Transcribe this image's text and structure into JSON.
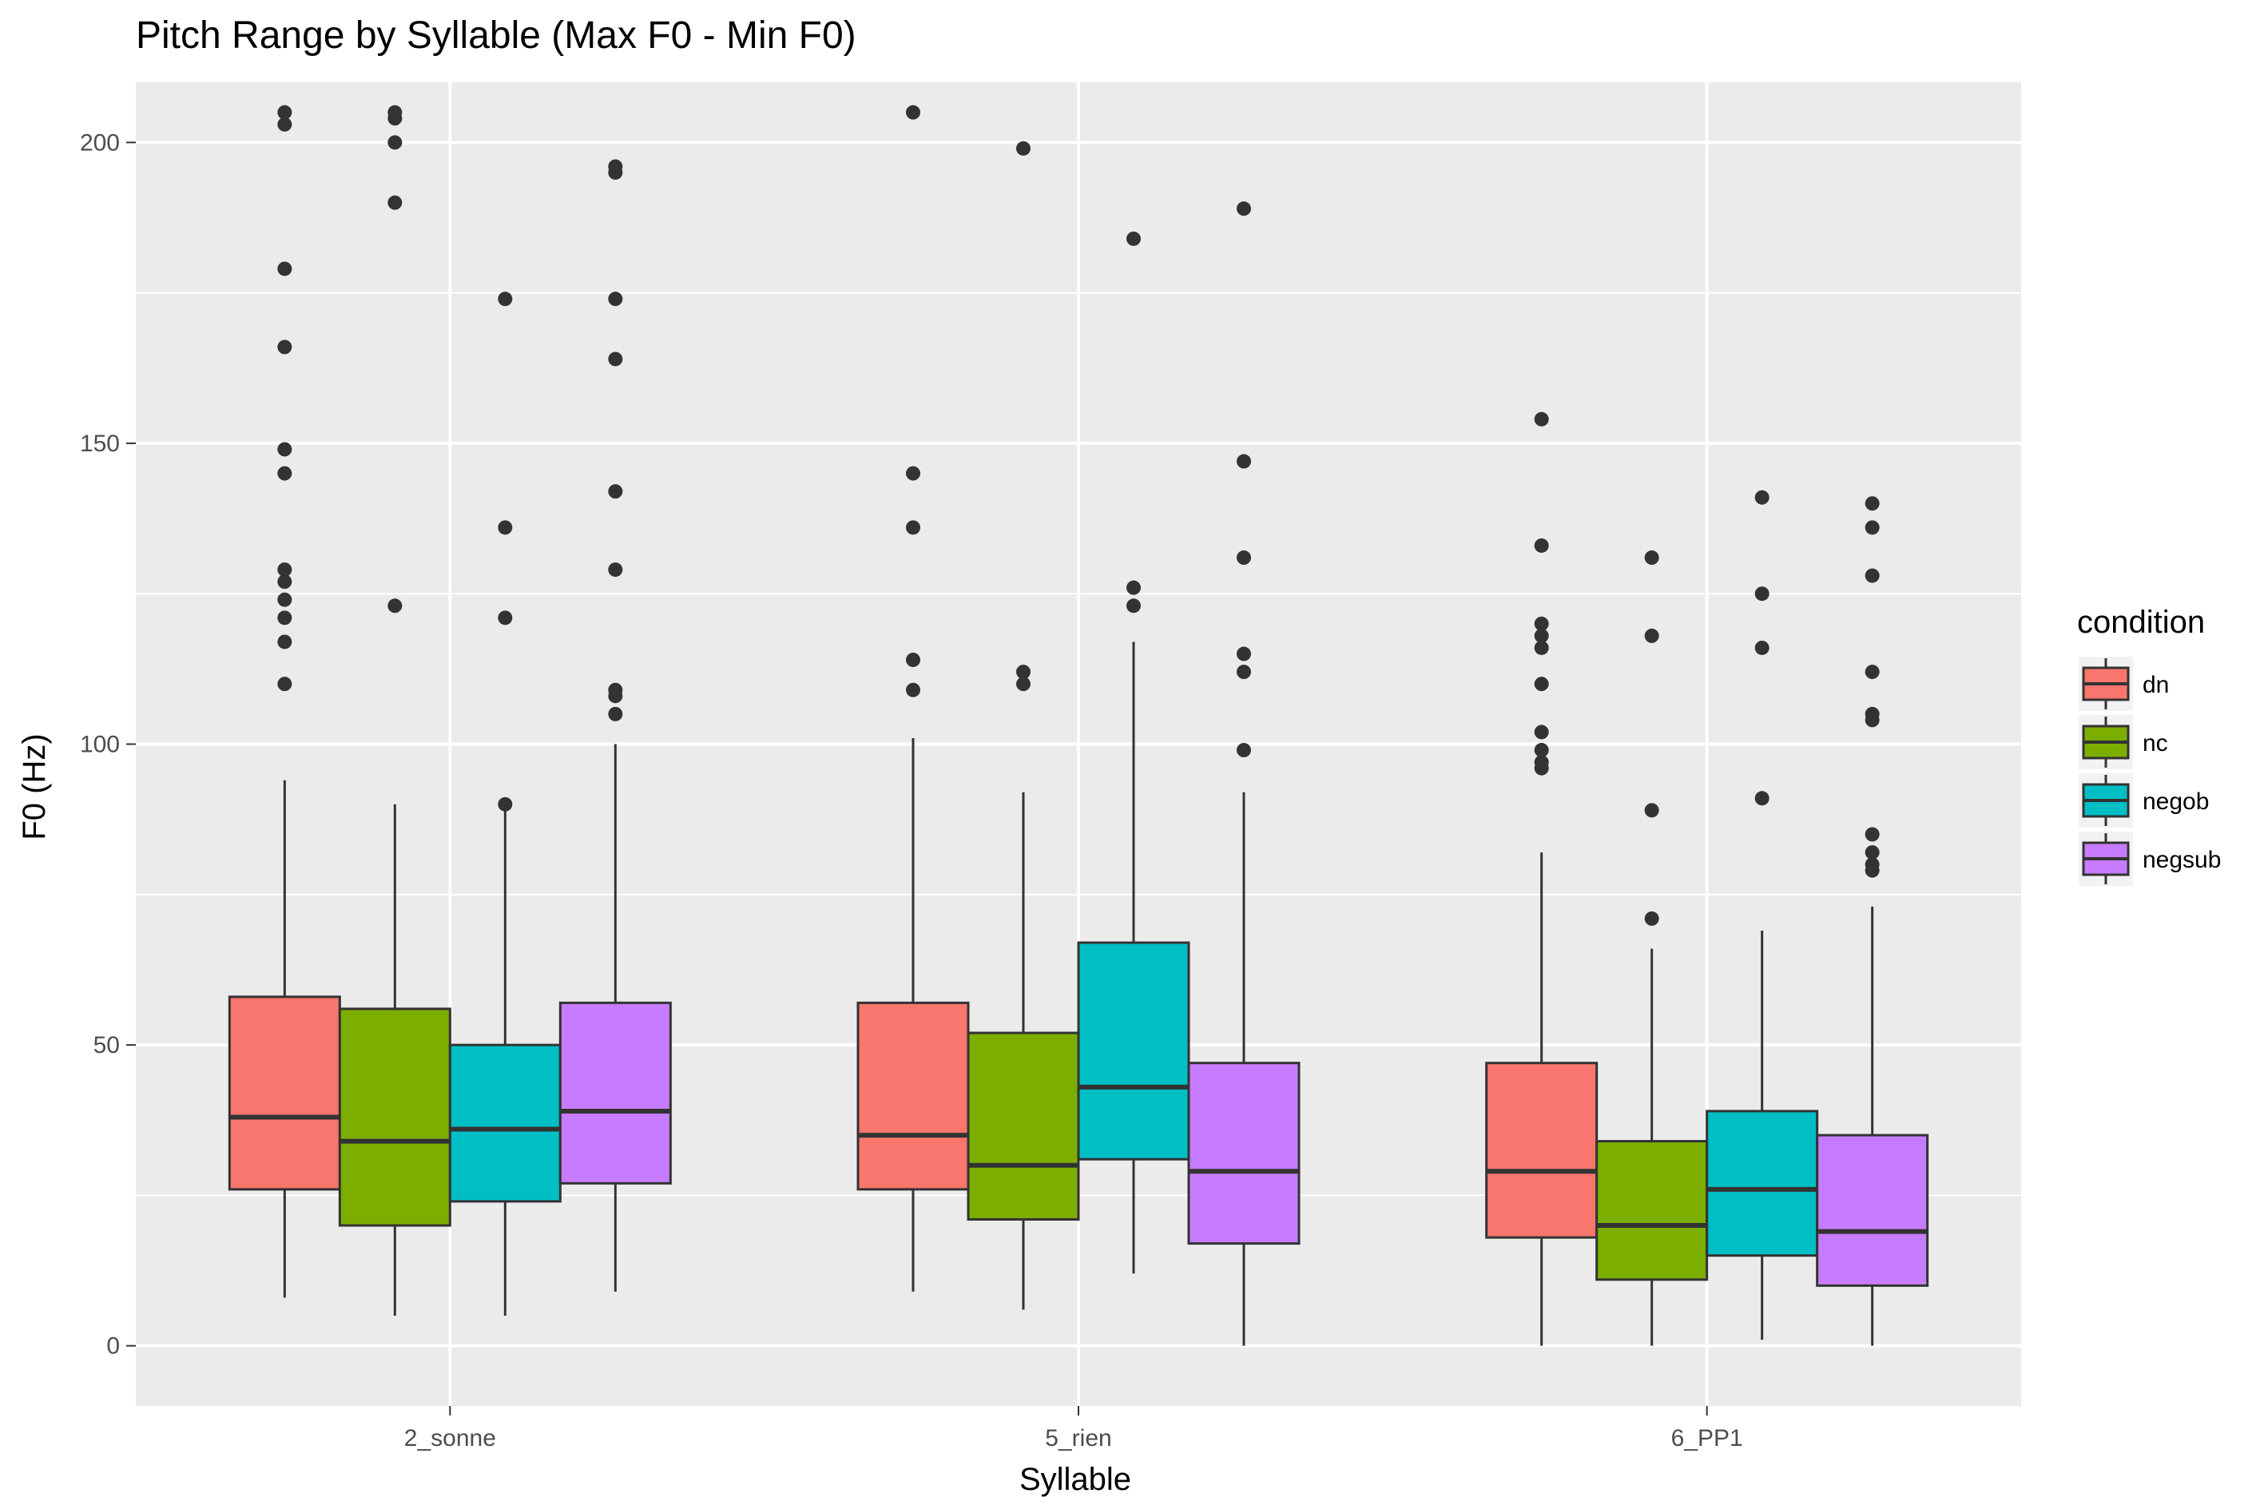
{
  "chart_data": {
    "type": "boxplot",
    "title": "Pitch Range by Syllable (Max F0 - Min F0)",
    "xlabel": "Syllable",
    "ylabel": "F0 (Hz)",
    "categories": [
      "2_sonne",
      "5_rien",
      "6_PP1"
    ],
    "ylim": [
      -10,
      210
    ],
    "yticks": [
      0,
      50,
      100,
      150,
      200
    ],
    "grid": true,
    "legend": {
      "title": "condition",
      "position": "right"
    },
    "series": [
      {
        "name": "dn",
        "color": "#F8766D",
        "boxes": [
          {
            "lower_whisker": 8,
            "q1": 26,
            "median": 38,
            "q3": 58,
            "upper_whisker": 94,
            "outliers": [
              110,
              117,
              121,
              124,
              127,
              129,
              145,
              149,
              166,
              179,
              203,
              205
            ]
          },
          {
            "lower_whisker": 9,
            "q1": 26,
            "median": 35,
            "q3": 57,
            "upper_whisker": 101,
            "outliers": [
              109,
              114,
              136,
              145,
              205
            ]
          },
          {
            "lower_whisker": 0,
            "q1": 18,
            "median": 29,
            "q3": 47,
            "upper_whisker": 82,
            "outliers": [
              96,
              97,
              99,
              102,
              110,
              116,
              118,
              120,
              133,
              154
            ]
          }
        ]
      },
      {
        "name": "nc",
        "color": "#7CAE00",
        "boxes": [
          {
            "lower_whisker": 5,
            "q1": 20,
            "median": 34,
            "q3": 56,
            "upper_whisker": 90,
            "outliers": [
              123,
              190,
              200,
              204,
              205
            ]
          },
          {
            "lower_whisker": 6,
            "q1": 21,
            "median": 30,
            "q3": 52,
            "upper_whisker": 92,
            "outliers": [
              110,
              112,
              199
            ]
          },
          {
            "lower_whisker": 0,
            "q1": 11,
            "median": 20,
            "q3": 34,
            "upper_whisker": 66,
            "outliers": [
              71,
              89,
              118,
              131
            ]
          }
        ]
      },
      {
        "name": "negob",
        "color": "#00BFC4",
        "boxes": [
          {
            "lower_whisker": 5,
            "q1": 24,
            "median": 36,
            "q3": 50,
            "upper_whisker": 89,
            "outliers": [
              90,
              121,
              136,
              174
            ]
          },
          {
            "lower_whisker": 12,
            "q1": 31,
            "median": 43,
            "q3": 67,
            "upper_whisker": 117,
            "outliers": [
              123,
              126,
              184
            ]
          },
          {
            "lower_whisker": 1,
            "q1": 15,
            "median": 26,
            "q3": 39,
            "upper_whisker": 69,
            "outliers": [
              91,
              116,
              125,
              141
            ]
          }
        ]
      },
      {
        "name": "negsub",
        "color": "#C77CFF",
        "boxes": [
          {
            "lower_whisker": 9,
            "q1": 27,
            "median": 39,
            "q3": 57,
            "upper_whisker": 100,
            "outliers": [
              105,
              108,
              109,
              129,
              142,
              164,
              174,
              195,
              196
            ]
          },
          {
            "lower_whisker": 0,
            "q1": 17,
            "median": 29,
            "q3": 47,
            "upper_whisker": 92,
            "outliers": [
              99,
              112,
              115,
              131,
              147,
              189
            ]
          },
          {
            "lower_whisker": 0,
            "q1": 10,
            "median": 19,
            "q3": 35,
            "upper_whisker": 73,
            "outliers": [
              79,
              80,
              82,
              85,
              104,
              105,
              112,
              128,
              136,
              140
            ]
          }
        ]
      }
    ]
  }
}
